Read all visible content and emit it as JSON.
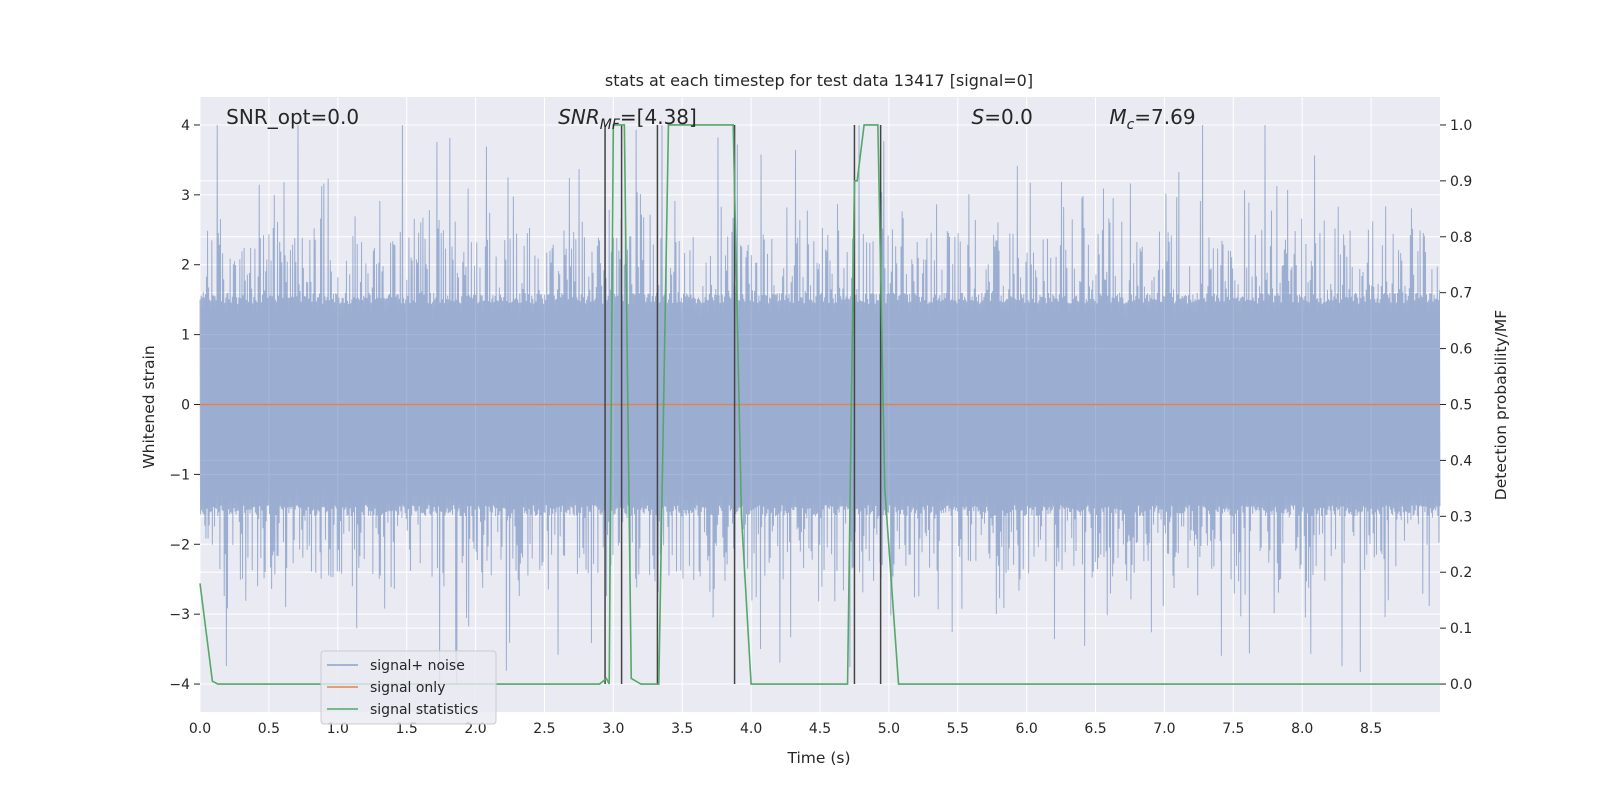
{
  "chart_data": {
    "type": "line",
    "title": "stats at each timestep for test data 13417 [signal=0]",
    "xlabel": "Time (s)",
    "ylabel_left": "Whitened strain",
    "ylabel_right": "Detection probability/MF",
    "xlim": [
      0.0,
      9.0
    ],
    "ylim_left": [
      -4.4,
      4.4
    ],
    "ylim_right": [
      -0.05,
      1.05
    ],
    "xticks": [
      0.0,
      0.5,
      1.0,
      1.5,
      2.0,
      2.5,
      3.0,
      3.5,
      4.0,
      4.5,
      5.0,
      5.5,
      6.0,
      6.5,
      7.0,
      7.5,
      8.0,
      8.5
    ],
    "xtick_labels": [
      "0.0",
      "0.5",
      "1.0",
      "1.5",
      "2.0",
      "2.5",
      "3.0",
      "3.5",
      "4.0",
      "4.5",
      "5.0",
      "5.5",
      "6.0",
      "6.5",
      "7.0",
      "7.5",
      "8.0",
      "8.5"
    ],
    "yticks_left": [
      -4,
      -3,
      -2,
      -1,
      0,
      1,
      2,
      3,
      4
    ],
    "ytick_labels_left": [
      "−4",
      "−3",
      "−2",
      "−1",
      "0",
      "1",
      "2",
      "3",
      "4"
    ],
    "yticks_right": [
      0.0,
      0.1,
      0.2,
      0.3,
      0.4,
      0.5,
      0.6,
      0.7,
      0.8,
      0.9,
      1.0
    ],
    "ytick_labels_right": [
      "0.0",
      "0.1",
      "0.2",
      "0.3",
      "0.4",
      "0.5",
      "0.6",
      "0.7",
      "0.8",
      "0.9",
      "1.0"
    ],
    "grid": true,
    "background": "#eaeaf2",
    "legend_position": "lower-left",
    "series": [
      {
        "name": "signal+ noise",
        "color": "#4c72b0",
        "kind": "noise",
        "sample_rate": 1024,
        "core_band": [
          -1.6,
          1.6
        ],
        "typical_peak": [
          2.3,
          2.6
        ],
        "max_abs": 4.0,
        "alpha": 0.5
      },
      {
        "name": "signal only",
        "color": "#dd8452",
        "x": [
          0.0,
          9.0
        ],
        "y": [
          0.0,
          0.0
        ]
      },
      {
        "name": "signal statistics",
        "color": "#55a868",
        "axis": "right",
        "x": [
          0.0,
          0.09,
          0.13,
          0.2,
          2.9,
          2.95,
          2.97,
          3.0,
          3.08,
          3.13,
          3.2,
          3.3,
          3.33,
          3.4,
          3.87,
          3.93,
          4.0,
          4.7,
          4.75,
          4.77,
          4.82,
          4.92,
          4.97,
          5.07,
          9.0
        ],
        "y": [
          0.18,
          0.005,
          0.0,
          0.0,
          0.0,
          0.01,
          0.0,
          1.0,
          1.0,
          0.01,
          0.0,
          0.0,
          0.0,
          1.0,
          1.0,
          0.3,
          0.0,
          0.0,
          0.9,
          0.9,
          1.0,
          1.0,
          0.35,
          0.0,
          0.0
        ]
      }
    ],
    "vlines": [
      {
        "x": 2.94,
        "color": "#444444"
      },
      {
        "x": 3.06,
        "color": "#444444"
      },
      {
        "x": 3.32,
        "color": "#444444"
      },
      {
        "x": 3.88,
        "color": "#444444"
      },
      {
        "x": 4.75,
        "color": "#444444"
      },
      {
        "x": 4.94,
        "color": "#444444"
      }
    ],
    "annotations": [
      {
        "text": "SNR_opt=0.0",
        "x": 0.19
      },
      {
        "text": "SNR_MF=[4.38]",
        "x": 2.6,
        "math": true
      },
      {
        "text": "S=0.0",
        "x": 5.6,
        "math": true
      },
      {
        "text": "M_c=7.69",
        "x": 6.6,
        "math": true
      }
    ]
  }
}
